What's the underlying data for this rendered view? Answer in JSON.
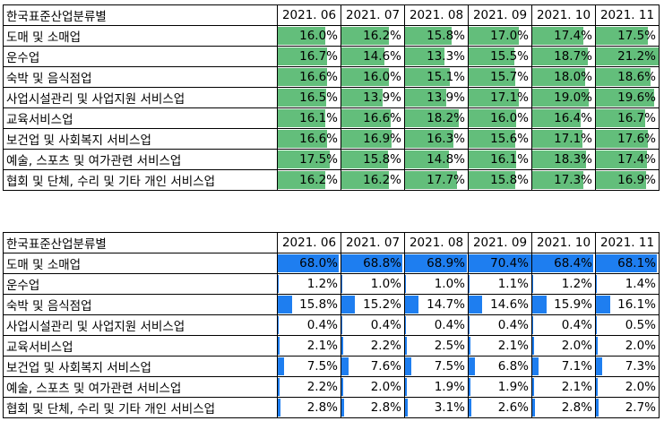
{
  "table1": {
    "header_label": "한국표준산업분류별",
    "periods": [
      "2021. 06",
      "2021. 07",
      "2021. 08",
      "2021. 09",
      "2021. 10",
      "2021. 11"
    ],
    "bar_color": "#63BE7B",
    "bar_scale_max": 21.2,
    "rows": [
      {
        "label": "도매 및 소매업",
        "values": [
          16.0,
          16.2,
          15.8,
          17.0,
          17.4,
          17.5
        ],
        "display": [
          "16.0%",
          "16.2%",
          "15.8%",
          "17.0%",
          "17.4%",
          "17.5%"
        ]
      },
      {
        "label": "운수업",
        "values": [
          16.7,
          14.6,
          13.3,
          15.5,
          18.7,
          21.2
        ],
        "display": [
          "16.7%",
          "14.6%",
          "13.3%",
          "15.5%",
          "18.7%",
          "21.2%"
        ]
      },
      {
        "label": "숙박 및 음식점업",
        "values": [
          16.6,
          16.0,
          15.1,
          15.7,
          18.0,
          18.6
        ],
        "display": [
          "16.6%",
          "16.0%",
          "15.1%",
          "15.7%",
          "18.0%",
          "18.6%"
        ]
      },
      {
        "label": "사업시설관리 및 사업지원 서비스업",
        "values": [
          16.5,
          13.9,
          13.9,
          17.1,
          19.0,
          19.6
        ],
        "display": [
          "16.5%",
          "13.9%",
          "13.9%",
          "17.1%",
          "19.0%",
          "19.6%"
        ]
      },
      {
        "label": "교육서비스업",
        "values": [
          16.1,
          16.6,
          18.2,
          16.0,
          16.4,
          16.7
        ],
        "display": [
          "16.1%",
          "16.6%",
          "18.2%",
          "16.0%",
          "16.4%",
          "16.7%"
        ]
      },
      {
        "label": "보건업 및 사회복지 서비스업",
        "values": [
          16.6,
          16.9,
          16.3,
          15.6,
          17.1,
          17.6
        ],
        "display": [
          "16.6%",
          "16.9%",
          "16.3%",
          "15.6%",
          "17.1%",
          "17.6%"
        ]
      },
      {
        "label": "예술, 스포츠 및 여가관련 서비스업",
        "values": [
          17.5,
          15.8,
          14.8,
          16.1,
          18.3,
          17.4
        ],
        "display": [
          "17.5%",
          "15.8%",
          "14.8%",
          "16.1%",
          "18.3%",
          "17.4%"
        ]
      },
      {
        "label": "협회 및 단체, 수리 및 기타 개인 서비스업",
        "values": [
          16.2,
          16.2,
          17.7,
          15.8,
          17.3,
          16.9
        ],
        "display": [
          "16.2%",
          "16.2%",
          "17.7%",
          "15.8%",
          "17.3%",
          "16.9%"
        ]
      }
    ]
  },
  "table2": {
    "header_label": "한국표준산업분류별",
    "periods": [
      "2021. 06",
      "2021. 07",
      "2021. 08",
      "2021. 09",
      "2021. 10",
      "2021. 11"
    ],
    "bar_color": "#1E7EF0",
    "bar_scale_max": 70.4,
    "rows": [
      {
        "label": "도매 및 소매업",
        "values": [
          68.0,
          68.8,
          68.9,
          70.4,
          68.4,
          68.1
        ],
        "display": [
          "68.0%",
          "68.8%",
          "68.9%",
          "70.4%",
          "68.4%",
          "68.1%"
        ]
      },
      {
        "label": "운수업",
        "values": [
          1.2,
          1.0,
          1.0,
          1.1,
          1.2,
          1.4
        ],
        "display": [
          "1.2%",
          "1.0%",
          "1.0%",
          "1.1%",
          "1.2%",
          "1.4%"
        ]
      },
      {
        "label": "숙박 및 음식점업",
        "values": [
          15.8,
          15.2,
          14.7,
          14.6,
          15.9,
          16.1
        ],
        "display": [
          "15.8%",
          "15.2%",
          "14.7%",
          "14.6%",
          "15.9%",
          "16.1%"
        ]
      },
      {
        "label": "사업시설관리 및 사업지원 서비스업",
        "values": [
          0.4,
          0.4,
          0.4,
          0.4,
          0.4,
          0.5
        ],
        "display": [
          "0.4%",
          "0.4%",
          "0.4%",
          "0.4%",
          "0.4%",
          "0.5%"
        ]
      },
      {
        "label": "교육서비스업",
        "values": [
          2.1,
          2.2,
          2.5,
          2.1,
          2.0,
          2.0
        ],
        "display": [
          "2.1%",
          "2.2%",
          "2.5%",
          "2.1%",
          "2.0%",
          "2.0%"
        ]
      },
      {
        "label": "보건업 및 사회복지 서비스업",
        "values": [
          7.5,
          7.6,
          7.5,
          6.8,
          7.1,
          7.3
        ],
        "display": [
          "7.5%",
          "7.6%",
          "7.5%",
          "6.8%",
          "7.1%",
          "7.3%"
        ]
      },
      {
        "label": "예술, 스포츠 및 여가관련 서비스업",
        "values": [
          2.2,
          2.0,
          1.9,
          1.9,
          2.1,
          2.0
        ],
        "display": [
          "2.2%",
          "2.0%",
          "1.9%",
          "1.9%",
          "2.1%",
          "2.0%"
        ]
      },
      {
        "label": "협회 및 단체, 수리 및 기타 개인 서비스업",
        "values": [
          2.8,
          2.8,
          3.1,
          2.6,
          2.8,
          2.7
        ],
        "display": [
          "2.8%",
          "2.8%",
          "3.1%",
          "2.6%",
          "2.8%",
          "2.7%"
        ]
      }
    ]
  }
}
